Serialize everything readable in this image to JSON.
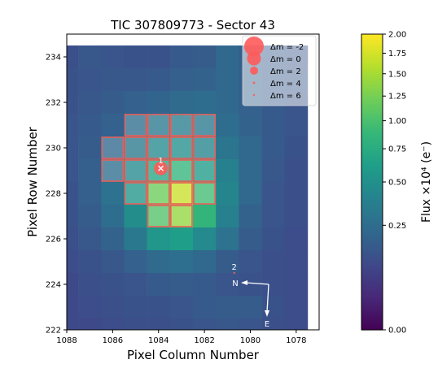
{
  "chart_data": {
    "type": "heatmap",
    "title": "TIC 307809773 - Sector 43",
    "xlabel": "Pixel Column Number",
    "ylabel": "Pixel Row Number",
    "x_reversed": true,
    "xlim": [
      1088,
      1077
    ],
    "ylim": [
      222,
      235
    ],
    "x_ticks": [
      "1088",
      "1086",
      "1084",
      "1082",
      "1080",
      "1078"
    ],
    "y_ticks": [
      "222",
      "224",
      "226",
      "228",
      "230",
      "232",
      "234"
    ],
    "grid": {
      "col_start": 1088,
      "cols": 11,
      "row_start": 222,
      "rows": 13,
      "flux_rows_top_to_bottom": [
        [
          0.12,
          0.15,
          0.14,
          0.13,
          0.13,
          0.16,
          0.17,
          0.22,
          0.18,
          0.16,
          0.14
        ],
        [
          0.13,
          0.14,
          0.15,
          0.15,
          0.16,
          0.18,
          0.2,
          0.22,
          0.19,
          0.17,
          0.15
        ],
        [
          0.13,
          0.15,
          0.17,
          0.19,
          0.21,
          0.24,
          0.25,
          0.22,
          0.19,
          0.16,
          0.14
        ],
        [
          0.14,
          0.16,
          0.19,
          0.25,
          0.32,
          0.36,
          0.32,
          0.25,
          0.2,
          0.16,
          0.14
        ],
        [
          0.14,
          0.17,
          0.22,
          0.33,
          0.45,
          0.5,
          0.42,
          0.3,
          0.22,
          0.16,
          0.13
        ],
        [
          0.14,
          0.18,
          0.26,
          0.45,
          0.7,
          0.85,
          0.6,
          0.38,
          0.22,
          0.15,
          0.12
        ],
        [
          0.13,
          0.18,
          0.28,
          0.55,
          1.2,
          1.7,
          0.95,
          0.42,
          0.22,
          0.14,
          0.12
        ],
        [
          0.13,
          0.17,
          0.25,
          0.48,
          1.05,
          1.4,
          0.85,
          0.38,
          0.2,
          0.14,
          0.12
        ],
        [
          0.12,
          0.15,
          0.2,
          0.32,
          0.55,
          0.62,
          0.45,
          0.28,
          0.17,
          0.13,
          0.11
        ],
        [
          0.11,
          0.13,
          0.15,
          0.19,
          0.24,
          0.26,
          0.22,
          0.17,
          0.14,
          0.12,
          0.11
        ],
        [
          0.1,
          0.12,
          0.13,
          0.14,
          0.16,
          0.17,
          0.16,
          0.14,
          0.13,
          0.12,
          0.11
        ],
        [
          0.1,
          0.11,
          0.12,
          0.13,
          0.13,
          0.14,
          0.16,
          0.17,
          0.17,
          0.13,
          0.11
        ],
        [
          0.1,
          0.1,
          0.11,
          0.12,
          0.12,
          0.13,
          0.14,
          0.15,
          0.14,
          0.12,
          0.11
        ]
      ]
    },
    "aperture_pixels": [
      [
        1085,
        231
      ],
      [
        1084,
        231
      ],
      [
        1083,
        231
      ],
      [
        1082,
        231
      ],
      [
        1086,
        230
      ],
      [
        1085,
        230
      ],
      [
        1084,
        230
      ],
      [
        1083,
        230
      ],
      [
        1082,
        230
      ],
      [
        1086,
        229
      ],
      [
        1085,
        229
      ],
      [
        1084,
        229
      ],
      [
        1083,
        229
      ],
      [
        1082,
        229
      ],
      [
        1085,
        228
      ],
      [
        1084,
        228
      ],
      [
        1083,
        228
      ],
      [
        1082,
        228
      ],
      [
        1084,
        227
      ],
      [
        1083,
        227
      ]
    ],
    "stars": [
      {
        "label": "1",
        "col": 1083.9,
        "row": 229.1,
        "dm": 0,
        "marker": "x"
      },
      {
        "label": "2",
        "col": 1080.7,
        "row": 224.5,
        "dm": 6,
        "marker": "dot"
      }
    ],
    "compass": {
      "origin_col": 1079.2,
      "origin_row": 224.0,
      "n_label": "N",
      "e_label": "E"
    },
    "legend": {
      "position": "upper-right",
      "entries": [
        {
          "label": "Δm = -2",
          "dm": -2
        },
        {
          "label": "Δm =  0",
          "dm": 0
        },
        {
          "label": "Δm =  2",
          "dm": 2
        },
        {
          "label": "Δm =  4",
          "dm": 4
        },
        {
          "label": "Δm =  6",
          "dm": 6
        }
      ]
    },
    "colorbar": {
      "label": "Flux ×10⁴ (e⁻)",
      "scale": "sqrt",
      "range": [
        0,
        2
      ],
      "tick_values": [
        0,
        0.25,
        0.5,
        0.75,
        1.0,
        1.25,
        1.5,
        1.75,
        2.0
      ],
      "tick_labels": [
        "0.00",
        "0.25",
        "0.50",
        "0.75",
        "1.00",
        "1.25",
        "1.50",
        "1.75",
        "2.00"
      ],
      "colormap": "viridis"
    },
    "colors": {
      "aperture_edge": "#e8605a",
      "star_marker": "#ff5a5a",
      "compass": "#ffffff"
    }
  }
}
